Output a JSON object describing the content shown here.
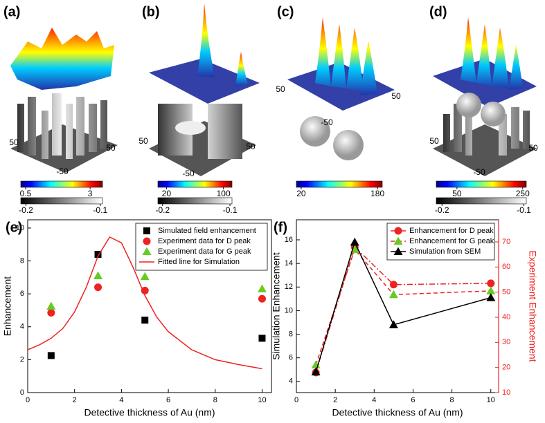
{
  "panels": [
    {
      "label": "(a)",
      "axis_labels": [
        50,
        -50,
        50
      ],
      "colorbars": [
        {
          "colormap": "jet",
          "ticks": [
            0.5,
            3
          ],
          "lim": [
            0.312,
            3.48
          ]
        },
        {
          "colormap": "gray",
          "ticks": [
            -0.2,
            -0.1
          ],
          "lim": [
            -0.207,
            -0.097
          ]
        }
      ]
    },
    {
      "label": "(b)",
      "axis_labels": [
        50,
        -50,
        50
      ],
      "colorbars": [
        {
          "colormap": "jet",
          "ticks": [
            20,
            100
          ],
          "lim": [
            8,
            112
          ]
        },
        {
          "colormap": "gray",
          "ticks": [
            -0.2,
            -0.1
          ],
          "lim": [
            -0.207,
            -0.097
          ]
        }
      ]
    },
    {
      "label": "(c)",
      "axis_labels": [
        50,
        -50,
        50
      ],
      "colorbars": [
        {
          "colormap": "jet",
          "ticks": [
            20,
            180
          ],
          "lim": [
            10,
            190
          ]
        }
      ]
    },
    {
      "label": "(d)",
      "axis_labels": [
        50,
        -50,
        50
      ],
      "colorbars": [
        {
          "colormap": "jet",
          "ticks": [
            50,
            250
          ],
          "lim": [
            -13,
            261
          ]
        },
        {
          "colormap": "gray",
          "ticks": [
            -0.2,
            -0.1
          ],
          "lim": [
            -0.207,
            -0.097
          ]
        }
      ]
    }
  ],
  "chart_data": [
    {
      "type": "scatter",
      "panel_label": "(e)",
      "xlabel": "Detective thickness of Au (nm)",
      "ylabel": "Enhancement",
      "xlim": [
        0,
        10.4
      ],
      "xticks": [
        0,
        2,
        4,
        6,
        8,
        10
      ],
      "ylim": [
        0,
        10.5
      ],
      "yticks": [
        0,
        2,
        4,
        6,
        8,
        10
      ],
      "legend": "upper right",
      "series": [
        {
          "name": "Simulated field enhancement",
          "color": "#000000",
          "marker": "square",
          "x": [
            1,
            3,
            5,
            10
          ],
          "values": [
            2.25,
            8.4,
            4.4,
            3.3
          ]
        },
        {
          "name": "Experiment data for D peak",
          "color": "#ee2222",
          "marker": "circle",
          "x": [
            1,
            3,
            5,
            10
          ],
          "values": [
            4.85,
            6.4,
            6.2,
            5.7
          ]
        },
        {
          "name": "Experiment data for G peak",
          "color": "#66cc22",
          "marker": "triangle",
          "x": [
            1,
            3,
            5,
            10
          ],
          "values": [
            5.25,
            7.1,
            7.05,
            6.3
          ]
        },
        {
          "name": "Fitted line for Simulation",
          "color": "#ee2222",
          "line": "solid",
          "x": [
            0,
            0.5,
            1,
            1.5,
            2,
            2.5,
            3,
            3.5,
            4,
            4.5,
            5,
            5.5,
            6,
            7,
            8,
            9,
            10
          ],
          "values": [
            2.6,
            2.9,
            3.3,
            3.9,
            4.9,
            6.4,
            8.3,
            9.45,
            9.1,
            7.6,
            5.9,
            4.6,
            3.7,
            2.6,
            2.0,
            1.7,
            1.45
          ]
        }
      ]
    },
    {
      "type": "line",
      "panel_label": "(f)",
      "xlabel": "Detective thickness of Au (nm)",
      "ylabel": "Simulation Enhancement",
      "y2label": "Experiment Enhancement",
      "xlim": [
        0,
        10.4
      ],
      "xticks": [
        0,
        2,
        4,
        6,
        8,
        10
      ],
      "ylim": [
        3.05,
        17.7
      ],
      "yticks": [
        4,
        6,
        8,
        10,
        12,
        14,
        16
      ],
      "y2lim": [
        10,
        78.8
      ],
      "y2ticks": [
        10,
        20,
        30,
        40,
        50,
        60,
        70
      ],
      "y2color": "#ee2222",
      "legend": "upper right",
      "series": [
        {
          "name": "Enhancement for D peak",
          "color": "#ee2222",
          "marker": "circle",
          "line": "dashdot",
          "axis": "y2",
          "x": [
            1,
            3,
            5,
            10
          ],
          "values": [
            18,
            68,
            53,
            53.5
          ]
        },
        {
          "name": "Enhancement for G peak",
          "color": "#66cc22",
          "linecolor": "#ee2222",
          "marker": "triangle",
          "line": "dashed",
          "axis": "y2",
          "x": [
            1,
            3,
            5,
            10
          ],
          "values": [
            21,
            67,
            49,
            50.5
          ]
        },
        {
          "name": "Simulation from SEM",
          "color": "#000000",
          "marker": "triangle",
          "line": "solid",
          "x": [
            1,
            3,
            5,
            10
          ],
          "values": [
            4.8,
            15.8,
            8.8,
            11.1
          ]
        }
      ]
    }
  ]
}
